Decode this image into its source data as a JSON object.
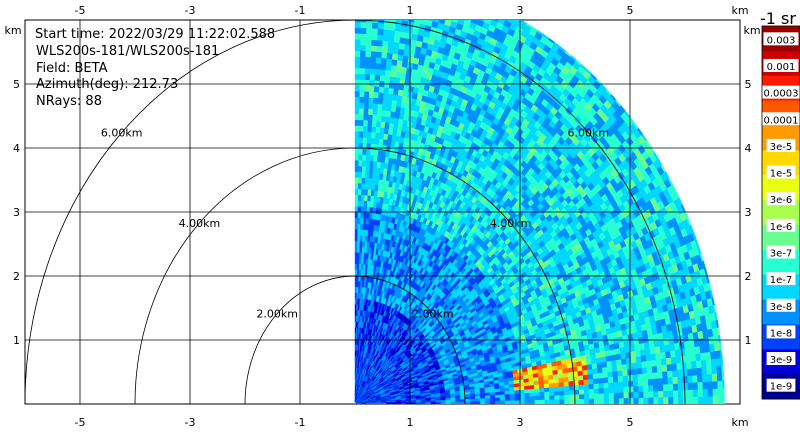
{
  "chart_data": {
    "type": "heatmap",
    "subtype": "radar-ppi-sector",
    "info": {
      "start_time": "Start time: 2022/03/29 11:22:02.588",
      "instrument": "WLS200s-181/WLS200s-181",
      "field": "Field: BETA",
      "azimuth": "Azimuth(deg): 212.73",
      "nrays": "NRays: 88"
    },
    "x_unit": "km",
    "y_unit": "km",
    "xlim": [
      -6.0,
      7.0
    ],
    "ylim": [
      0.0,
      6.0
    ],
    "x_ticks": [
      "-5",
      "-3",
      "-1",
      "1",
      "3",
      "5"
    ],
    "y_ticks": [
      "1",
      "2",
      "3",
      "4",
      "5"
    ],
    "range_rings": [
      {
        "label": "2.00km",
        "radius": 2.0
      },
      {
        "label": "4.00km",
        "radius": 4.0
      },
      {
        "label": "6.00km",
        "radius": 6.0
      }
    ],
    "colorbar_title": "-1 sr",
    "colorbar_labels": [
      "0.003",
      "0.001",
      "0.0003",
      "0.0001",
      "3e-5",
      "1e-5",
      "3e-6",
      "1e-6",
      "3e-7",
      "1e-7",
      "3e-8",
      "1e-8",
      "3e-9",
      "1e-9"
    ],
    "colorbar_colors": [
      "#9a0000",
      "#cc0000",
      "#ff1a00",
      "#ff5a00",
      "#ff9a00",
      "#ffd800",
      "#e8ff10",
      "#a8ff50",
      "#68ff90",
      "#28ffd0",
      "#00d8ff",
      "#0090ff",
      "#0040ff",
      "#0000d8",
      "#000090"
    ],
    "sector": {
      "az_start_deg": 0,
      "az_end_deg": 90,
      "max_range_km": 6.72
    },
    "ray_count": 88,
    "hotspot": {
      "range_km": [
        2.9,
        4.2
      ],
      "azimuth_deg": [
        80,
        86
      ]
    }
  }
}
